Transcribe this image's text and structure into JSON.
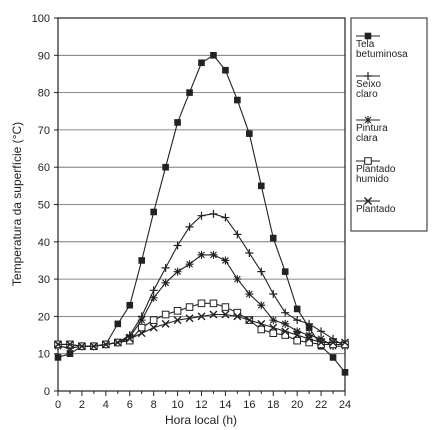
{
  "chart_data": {
    "type": "line",
    "title": "",
    "xlabel": "Hora local (h)",
    "ylabel": "Temperatura da superfície (°C)",
    "xlim": [
      0,
      24
    ],
    "ylim": [
      0,
      100
    ],
    "xticks": [
      0,
      2,
      4,
      6,
      8,
      10,
      12,
      14,
      16,
      18,
      20,
      22,
      24
    ],
    "yticks": [
      0,
      10,
      20,
      30,
      40,
      50,
      60,
      70,
      80,
      90,
      100
    ],
    "grid": "horizontal",
    "legend_position": "right",
    "x": [
      0,
      1,
      2,
      3,
      4,
      5,
      6,
      7,
      8,
      9,
      10,
      11,
      12,
      13,
      14,
      15,
      16,
      17,
      18,
      19,
      20,
      21,
      22,
      23,
      24
    ],
    "series": [
      {
        "name": "Tela betuminosa",
        "marker": "filled-square",
        "values": [
          9,
          10,
          12,
          12,
          12.5,
          18,
          23,
          35,
          48,
          60,
          72,
          80,
          88,
          90,
          86,
          78,
          69,
          55,
          41,
          32,
          22,
          17,
          12,
          9,
          5
        ]
      },
      {
        "name": "Seixo claro",
        "marker": "plus",
        "values": [
          12,
          11.5,
          12,
          12,
          12.5,
          13,
          15,
          20,
          27,
          33,
          39,
          44,
          47,
          47.5,
          46.5,
          42,
          37,
          32,
          26,
          21,
          19,
          18,
          16,
          14,
          12
        ]
      },
      {
        "name": "Pintura clara",
        "marker": "star",
        "values": [
          12,
          11.5,
          12,
          12,
          12.5,
          13,
          14.5,
          19,
          25,
          29,
          32,
          34,
          36.5,
          36.5,
          35,
          30,
          26,
          23,
          19,
          18,
          16,
          15,
          14,
          12,
          12
        ]
      },
      {
        "name": "Plantado humido",
        "marker": "open-square",
        "values": [
          12.5,
          12.5,
          12,
          12,
          12.5,
          13,
          13.5,
          17,
          19,
          20.5,
          21.5,
          22.5,
          23.5,
          23.5,
          22.5,
          21,
          19,
          16.5,
          15.5,
          15,
          13.5,
          13,
          12.5,
          12.5,
          12.5
        ]
      },
      {
        "name": "Plantado",
        "marker": "cross",
        "values": [
          12.5,
          12.5,
          12,
          12,
          12.5,
          13,
          14,
          15.5,
          17,
          18,
          19,
          19.5,
          20,
          20.5,
          20.5,
          20,
          19,
          18,
          17,
          16,
          15,
          14,
          13,
          13,
          13
        ]
      }
    ]
  }
}
